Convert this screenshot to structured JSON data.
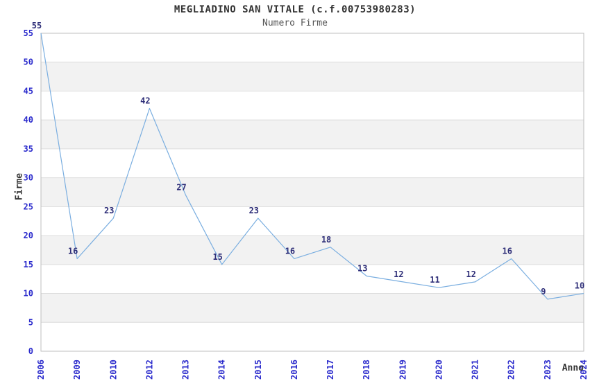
{
  "chart_data": {
    "type": "line",
    "title": "MEGLIADINO SAN VITALE (c.f.00753980283)",
    "subtitle": "Numero Firme",
    "xlabel": "Anno",
    "ylabel": "Firme",
    "categories": [
      "2006",
      "2009",
      "2010",
      "2012",
      "2013",
      "2014",
      "2015",
      "2016",
      "2017",
      "2018",
      "2019",
      "2020",
      "2021",
      "2022",
      "2023",
      "2024"
    ],
    "values": [
      55,
      16,
      23,
      42,
      27,
      15,
      23,
      16,
      18,
      13,
      12,
      11,
      12,
      16,
      9,
      10
    ],
    "ylim": [
      0,
      55
    ],
    "ytick_step": 5,
    "grid": true,
    "legend": "none",
    "data_labels": true,
    "band_intervals_gray": [
      [
        5,
        10
      ],
      [
        15,
        20
      ],
      [
        25,
        30
      ],
      [
        35,
        40
      ],
      [
        45,
        50
      ]
    ]
  },
  "colors": {
    "line": "#7aaee0",
    "tick_label": "#2a2acc",
    "data_label": "#2e2e78",
    "band_gray": "#f2f2f2",
    "grid_line": "#dcdcdc",
    "plot_border": "#bfbfbf",
    "title_text": "#333333",
    "subtitle_text": "#555555",
    "background": "#ffffff"
  }
}
